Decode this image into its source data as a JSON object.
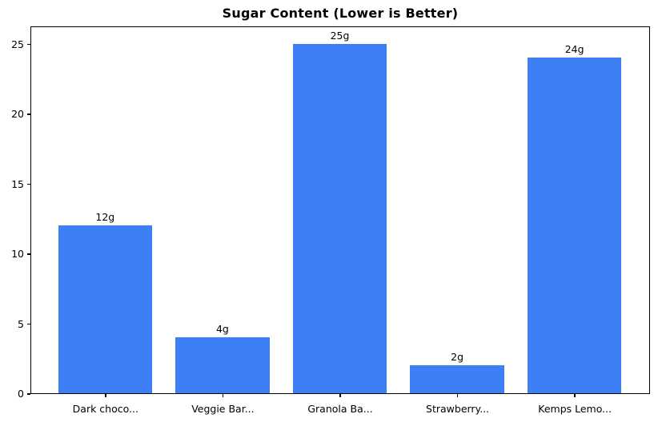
{
  "chart_data": {
    "type": "bar",
    "title": "Sugar Content (Lower is Better)",
    "categories": [
      "Dark choco...",
      "Veggie Bar...",
      "Granola Ba...",
      "Strawberry...",
      "Kemps Lemo..."
    ],
    "values": [
      12,
      4,
      25,
      2,
      24
    ],
    "bar_labels": [
      "12g",
      "4g",
      "25g",
      "2g",
      "24g"
    ],
    "xlabel": "",
    "ylabel": "",
    "yticks": [
      0,
      5,
      10,
      15,
      20,
      25
    ],
    "ylim": [
      0,
      26.3
    ],
    "grid": false,
    "legend": null,
    "bar_color": "#3d7ff5",
    "text_color": "#000000",
    "background_color": "#ffffff"
  }
}
